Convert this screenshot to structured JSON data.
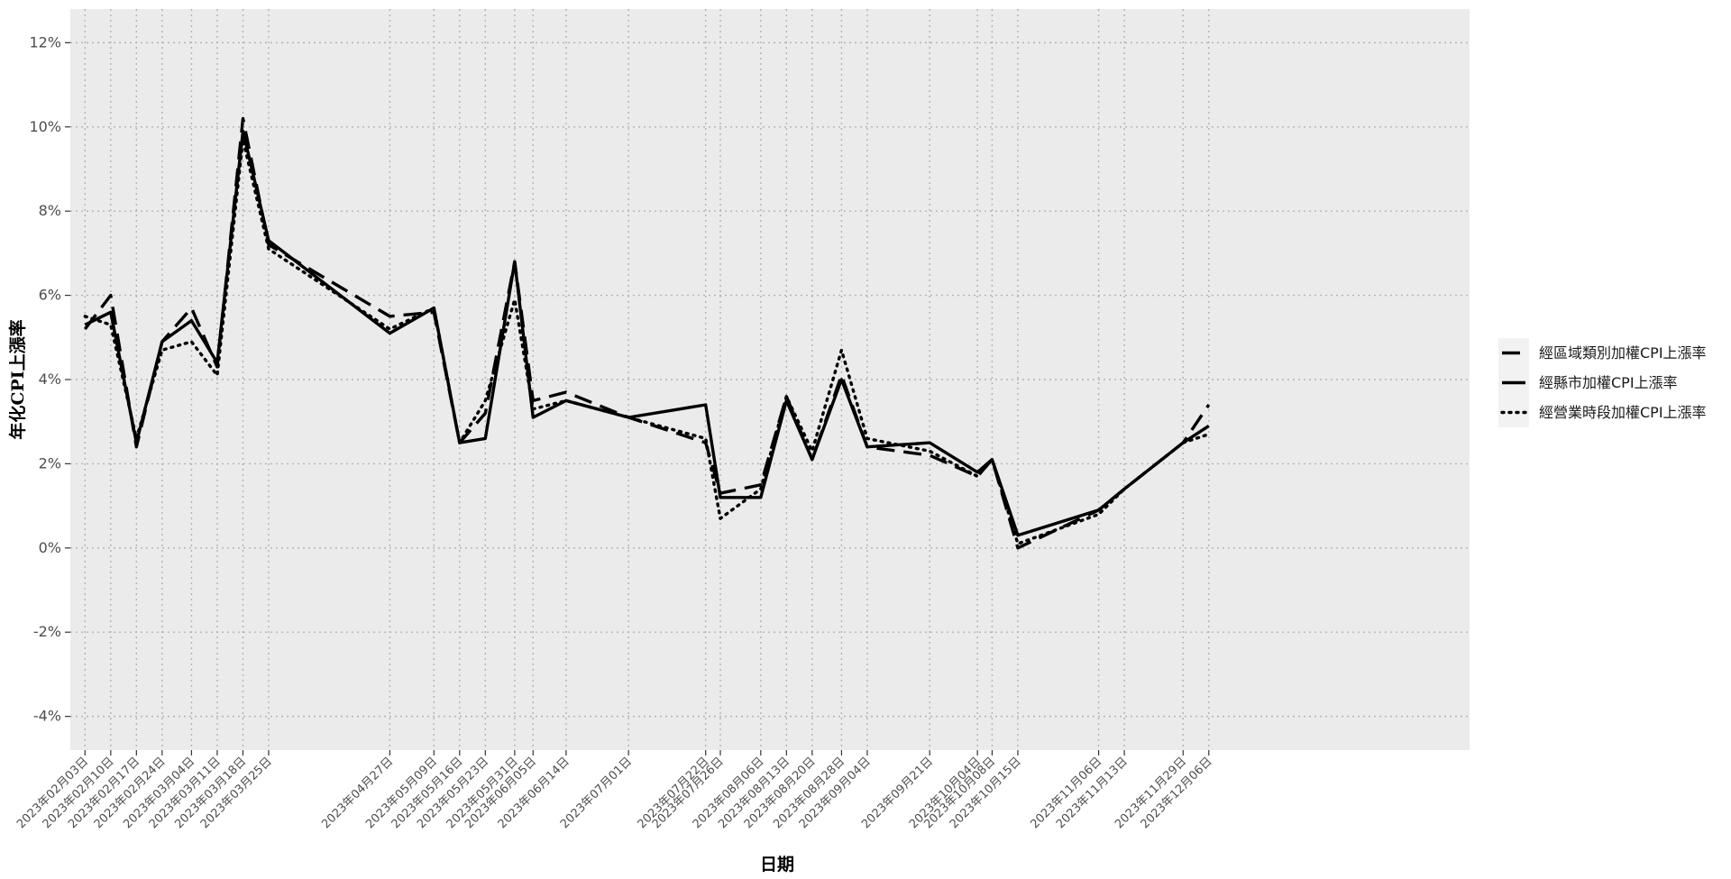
{
  "chart_data": {
    "type": "line",
    "xlabel": "日期",
    "ylabel": "年化CPI上漲率",
    "ylim": [
      -4.8,
      12.8
    ],
    "yticks": [
      -4,
      -2,
      0,
      2,
      4,
      6,
      8,
      10,
      12
    ],
    "ytick_labels": [
      "-4%",
      "-2%",
      "0%",
      "2%",
      "4%",
      "6%",
      "8%",
      "10%",
      "12%"
    ],
    "grid": true,
    "legend_position": "right",
    "x": [
      "2023-02-03",
      "2023-02-10",
      "2023-02-17",
      "2023-02-24",
      "2023-03-04",
      "2023-03-11",
      "2023-03-18",
      "2023-03-25",
      "2023-04-27",
      "2023-05-09",
      "2023-05-16",
      "2023-05-23",
      "2023-05-31",
      "2023-06-05",
      "2023-06-14",
      "2023-07-01",
      "2023-07-22",
      "2023-07-26",
      "2023-08-06",
      "2023-08-13",
      "2023-08-20",
      "2023-08-28",
      "2023-09-04",
      "2023-09-21",
      "2023-10-04",
      "2023-10-08",
      "2023-10-15",
      "2023-11-06",
      "2023-11-13",
      "2023-11-29",
      "2023-12-06"
    ],
    "x_tick_labels": [
      "2023年02月03日",
      "2023年02月10日",
      "2023年02月17日",
      "2023年02月24日",
      "2023年03月04日",
      "2023年03月11日",
      "2023年03月18日",
      "2023年03月25日",
      "2023年04月27日",
      "2023年05月09日",
      "2023年05月16日",
      "2023年05月23日",
      "2023年05月31日",
      "2023年06月05日",
      "2023年06月14日",
      "2023年07月01日",
      "2023年07月22日",
      "2023年07月26日",
      "2023年08月06日",
      "2023年08月13日",
      "2023年08月20日",
      "2023年08月28日",
      "2023年09月04日",
      "2023年09月21日",
      "2023年10月04日",
      "2023年10月08日",
      "2023年10月15日",
      "2023年11月06日",
      "2023年11月13日",
      "2023年11月29日",
      "2023年12月06日"
    ],
    "series": [
      {
        "name": "經區域類別加權CPI上漲率",
        "line_style": "dashed",
        "values": [
          5.2,
          6.0,
          2.4,
          4.9,
          5.7,
          4.3,
          10.2,
          7.2,
          5.5,
          5.6,
          2.5,
          3.2,
          6.8,
          3.5,
          3.7,
          3.1,
          2.5,
          1.3,
          1.5,
          3.6,
          2.1,
          4.1,
          2.4,
          2.2,
          1.7,
          2.1,
          0.0,
          0.9,
          1.4,
          2.5,
          3.4
        ],
        "color": "#000000"
      },
      {
        "name": "經縣市加權CPI上漲率",
        "line_style": "solid",
        "values": [
          5.3,
          5.6,
          2.5,
          4.9,
          5.4,
          4.4,
          9.9,
          7.3,
          5.1,
          5.7,
          2.5,
          2.6,
          6.8,
          3.1,
          3.5,
          3.1,
          3.4,
          1.2,
          1.2,
          3.5,
          2.1,
          4.0,
          2.4,
          2.5,
          1.8,
          2.1,
          0.3,
          0.9,
          1.4,
          2.5,
          2.9
        ],
        "color": "#000000"
      },
      {
        "name": "經營業時段加權CPI上漲率",
        "line_style": "dotted",
        "values": [
          5.5,
          5.3,
          2.6,
          4.7,
          4.9,
          4.1,
          9.7,
          7.1,
          5.2,
          5.7,
          2.5,
          3.5,
          5.9,
          3.3,
          3.5,
          3.1,
          2.6,
          0.7,
          1.4,
          3.6,
          2.3,
          4.7,
          2.6,
          2.3,
          1.7,
          2.1,
          0.1,
          0.8,
          1.4,
          2.5,
          2.7
        ],
        "color": "#000000"
      }
    ]
  },
  "colors": {
    "panel_background": "#ebebeb",
    "grid": "#b3b3b3",
    "legend_key_background": "#f2f2f2"
  }
}
